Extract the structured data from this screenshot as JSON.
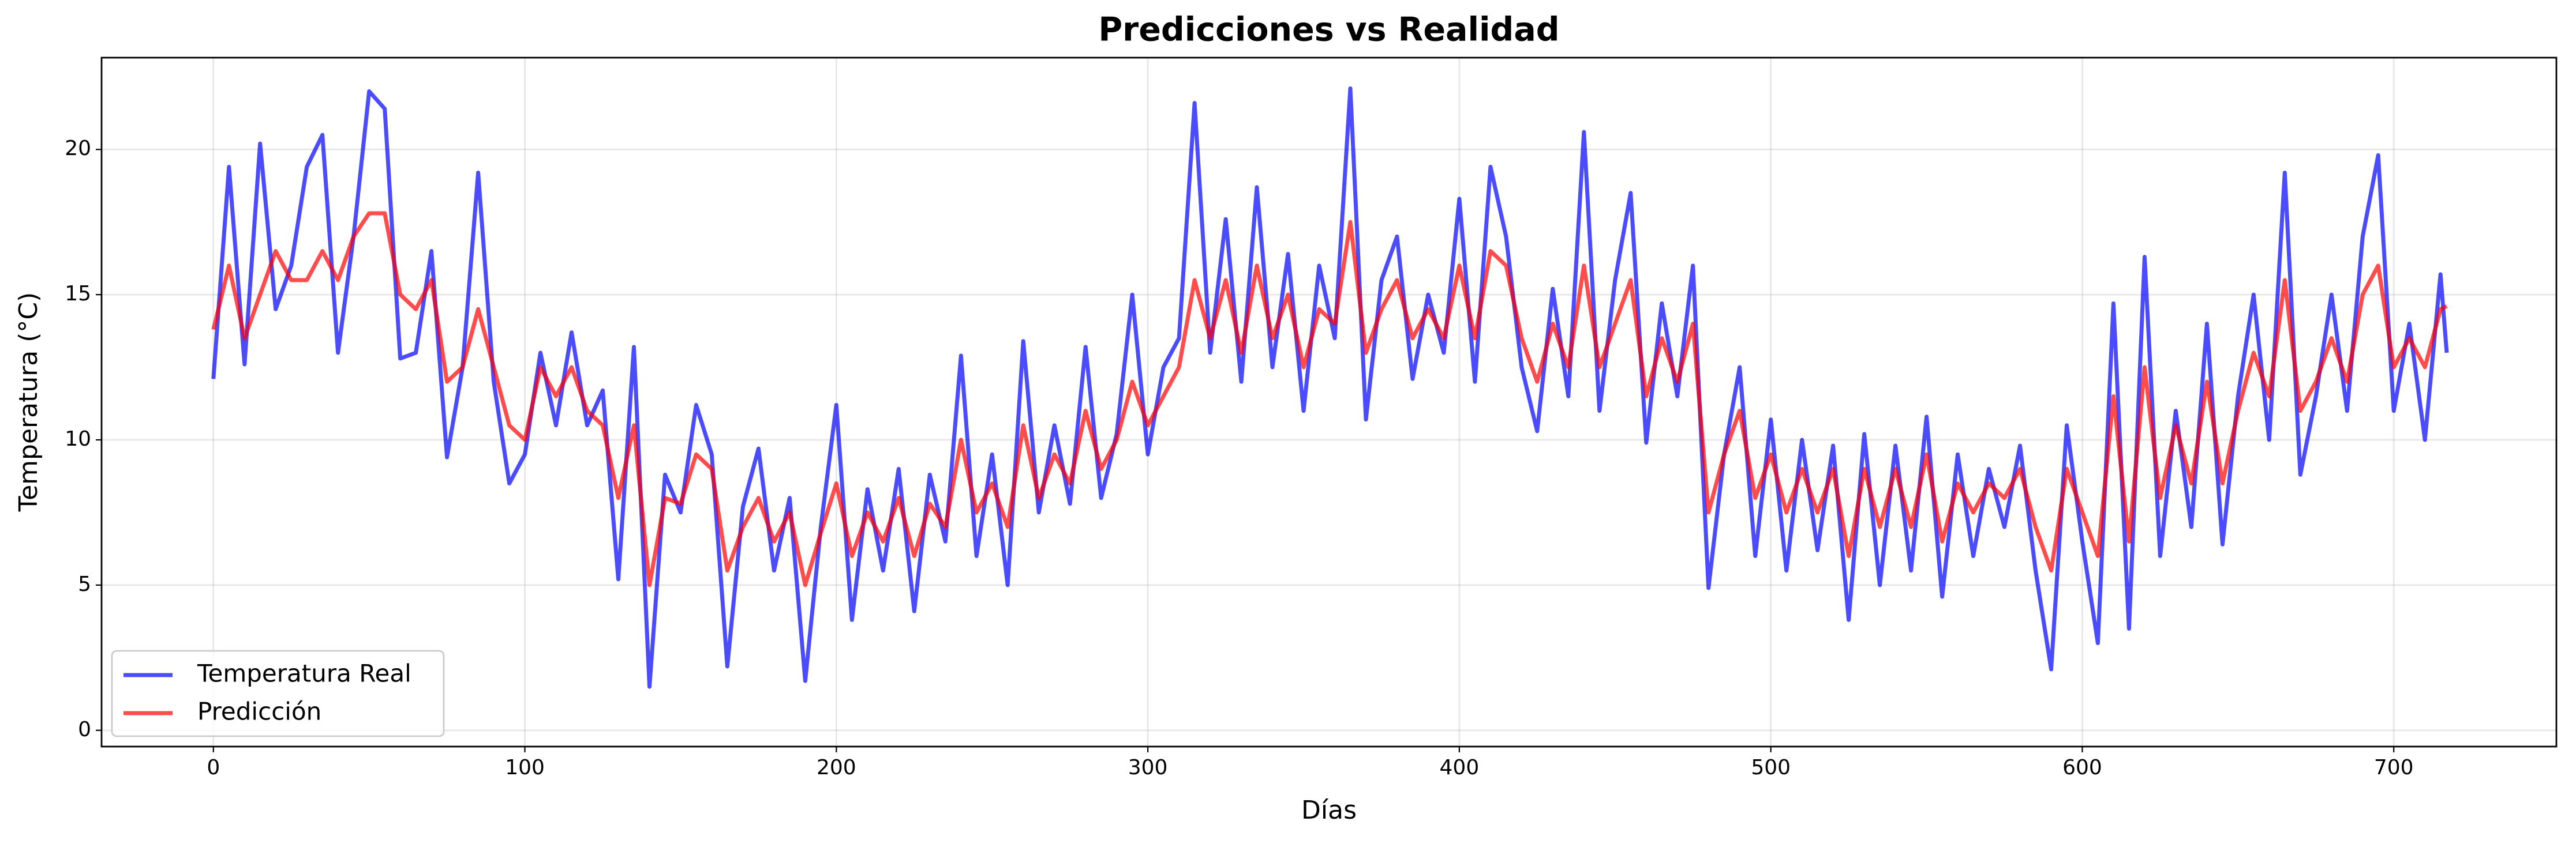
{
  "chart_data": {
    "type": "line",
    "title": "Predicciones vs Realidad",
    "xlabel": "Días",
    "ylabel": "Temperatura (°C)",
    "x": [
      0,
      5,
      10,
      15,
      20,
      25,
      30,
      35,
      40,
      45,
      50,
      55,
      60,
      65,
      70,
      75,
      80,
      85,
      90,
      95,
      100,
      105,
      110,
      115,
      120,
      125,
      130,
      135,
      140,
      145,
      150,
      155,
      160,
      165,
      170,
      175,
      180,
      185,
      190,
      195,
      200,
      205,
      210,
      215,
      220,
      225,
      230,
      235,
      240,
      245,
      250,
      255,
      260,
      265,
      270,
      275,
      280,
      285,
      290,
      295,
      300,
      305,
      310,
      315,
      320,
      325,
      330,
      335,
      340,
      345,
      350,
      355,
      360,
      365,
      370,
      375,
      380,
      385,
      390,
      395,
      400,
      405,
      410,
      415,
      420,
      425,
      430,
      435,
      440,
      445,
      450,
      455,
      460,
      465,
      470,
      475,
      480,
      485,
      490,
      495,
      500,
      505,
      510,
      515,
      520,
      525,
      530,
      535,
      540,
      545,
      550,
      555,
      560,
      565,
      570,
      575,
      580,
      585,
      590,
      595,
      600,
      605,
      610,
      615,
      620,
      625,
      630,
      635,
      640,
      645,
      650,
      655,
      660,
      665,
      670,
      675,
      680,
      685,
      690,
      695,
      700,
      705,
      710,
      715,
      717
    ],
    "series": [
      {
        "name": "Temperatura Real",
        "color": "#0000ff",
        "values": [
          12.1,
          19.4,
          12.6,
          20.2,
          14.5,
          16.0,
          19.4,
          20.5,
          13.0,
          17.0,
          22.0,
          21.4,
          12.8,
          13.0,
          16.5,
          9.4,
          12.5,
          19.2,
          12.0,
          8.5,
          9.5,
          13.0,
          10.5,
          13.7,
          10.5,
          11.7,
          5.2,
          13.2,
          1.5,
          8.8,
          7.5,
          11.2,
          9.5,
          2.2,
          7.7,
          9.7,
          5.5,
          8.0,
          1.7,
          7.0,
          11.2,
          3.8,
          8.3,
          5.5,
          9.0,
          4.1,
          8.8,
          6.5,
          12.9,
          6.0,
          9.5,
          5.0,
          13.4,
          7.5,
          10.5,
          7.8,
          13.2,
          8.0,
          10.2,
          15.0,
          9.5,
          12.5,
          13.5,
          21.6,
          13.0,
          17.6,
          12.0,
          18.7,
          12.5,
          16.4,
          11.0,
          16.0,
          13.5,
          22.1,
          10.7,
          15.5,
          17.0,
          12.1,
          15.0,
          13.0,
          18.3,
          12.0,
          19.4,
          17.0,
          12.5,
          10.3,
          15.2,
          11.5,
          20.6,
          11.0,
          15.5,
          18.5,
          9.9,
          14.7,
          11.5,
          16.0,
          4.9,
          9.5,
          12.5,
          6.0,
          10.7,
          5.5,
          10.0,
          6.2,
          9.8,
          3.8,
          10.2,
          5.0,
          9.8,
          5.5,
          10.8,
          4.6,
          9.5,
          6.0,
          9.0,
          7.0,
          9.8,
          5.5,
          2.1,
          10.5,
          6.5,
          3.0,
          14.7,
          3.5,
          16.3,
          6.0,
          11.0,
          7.0,
          14.0,
          6.4,
          11.5,
          15.0,
          10.0,
          19.2,
          8.8,
          11.5,
          15.0,
          11.0,
          17.0,
          19.8,
          11.0,
          14.0,
          10.0,
          15.7,
          13.0
        ]
      },
      {
        "name": "Predicción",
        "color": "#ff0000",
        "values": [
          13.8,
          16.0,
          13.5,
          15.0,
          16.5,
          15.5,
          15.5,
          16.5,
          15.5,
          17.0,
          17.8,
          17.8,
          15.0,
          14.5,
          15.5,
          12.0,
          12.5,
          14.5,
          12.5,
          10.5,
          10.0,
          12.5,
          11.5,
          12.5,
          11.0,
          10.5,
          8.0,
          10.5,
          5.0,
          8.0,
          7.8,
          9.5,
          9.0,
          5.5,
          7.0,
          8.0,
          6.5,
          7.5,
          5.0,
          6.8,
          8.5,
          6.0,
          7.5,
          6.5,
          8.0,
          6.0,
          7.8,
          7.0,
          10.0,
          7.5,
          8.5,
          7.0,
          10.5,
          8.0,
          9.5,
          8.5,
          11.0,
          9.0,
          10.0,
          12.0,
          10.5,
          11.5,
          12.5,
          15.5,
          13.5,
          15.5,
          13.0,
          16.0,
          13.5,
          15.0,
          12.5,
          14.5,
          14.0,
          17.5,
          13.0,
          14.5,
          15.5,
          13.5,
          14.5,
          13.5,
          16.0,
          13.5,
          16.5,
          16.0,
          13.5,
          12.0,
          14.0,
          12.5,
          16.0,
          12.5,
          14.0,
          15.5,
          11.5,
          13.5,
          12.0,
          14.0,
          7.5,
          9.5,
          11.0,
          8.0,
          9.5,
          7.5,
          9.0,
          7.5,
          9.0,
          6.0,
          9.0,
          7.0,
          9.0,
          7.0,
          9.5,
          6.5,
          8.5,
          7.5,
          8.5,
          8.0,
          9.0,
          7.0,
          5.5,
          9.0,
          7.5,
          6.0,
          11.5,
          6.5,
          12.5,
          8.0,
          10.5,
          8.5,
          12.0,
          8.5,
          11.0,
          13.0,
          11.5,
          15.5,
          11.0,
          12.0,
          13.5,
          12.0,
          15.0,
          16.0,
          12.5,
          13.5,
          12.5,
          14.5,
          14.6
        ]
      }
    ],
    "xlim": [
      -35.9,
      752.2
    ],
    "ylim": [
      -0.56,
      23.16
    ],
    "xticks": [
      0,
      100,
      200,
      300,
      400,
      500,
      600,
      700
    ],
    "yticks": [
      0,
      5,
      10,
      15,
      20
    ],
    "grid": true,
    "legend": "lower left"
  }
}
